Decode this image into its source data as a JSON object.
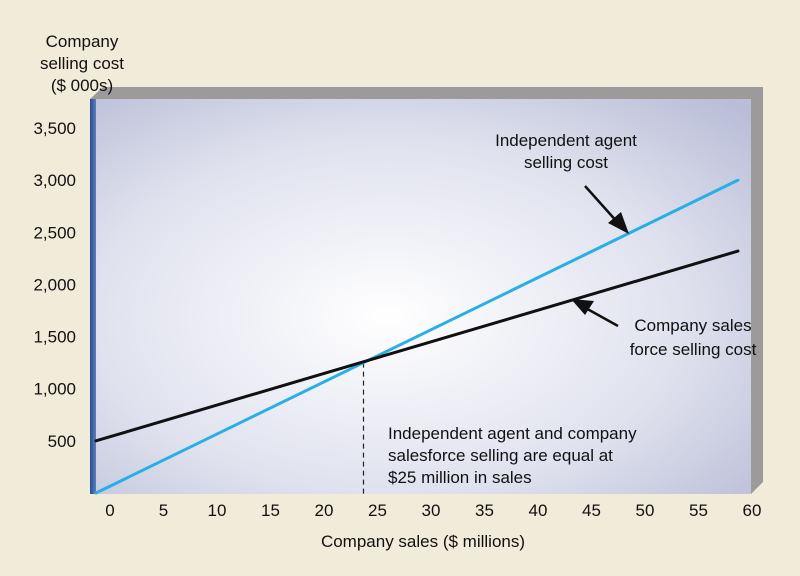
{
  "chart_data": {
    "type": "line",
    "title": "",
    "xlabel": "Company sales ($ millions)",
    "ylabel": [
      "Company",
      "selling cost",
      "($ 000s)"
    ],
    "x_ticks": [
      0,
      5,
      10,
      15,
      20,
      25,
      30,
      35,
      40,
      45,
      50,
      55,
      60
    ],
    "y_ticks": [
      500,
      1000,
      1500,
      2000,
      2500,
      3000,
      3500
    ],
    "y_tick_labels": [
      "500",
      "1,000",
      "1,500",
      "2,000",
      "2,500",
      "3,000",
      "3,500"
    ],
    "xlim": [
      0,
      60
    ],
    "ylim": [
      0,
      3500
    ],
    "grid": false,
    "series": [
      {
        "name": "Independent agent selling cost",
        "color": "#29aee6",
        "x": [
          0,
          60
        ],
        "y": [
          0,
          3000
        ]
      },
      {
        "name": "Company sales force selling cost",
        "color": "#111111",
        "x": [
          0,
          60
        ],
        "y": [
          500,
          2320
        ]
      }
    ],
    "annotations": {
      "agent_label": [
        "Independent agent",
        "selling cost"
      ],
      "salesforce_label": [
        "Company sales",
        "force selling cost"
      ],
      "breakeven_note": [
        "Independent agent and company",
        "salesforce selling are equal at",
        "$25 million in sales"
      ]
    },
    "breakeven": {
      "x": 25,
      "y": 1250
    },
    "colors": {
      "page_background": "#f1ebd9",
      "plot_background_center": "#ffffff",
      "plot_background_edge": "#b9bdd6",
      "left_bar": "#3d62a3"
    }
  }
}
